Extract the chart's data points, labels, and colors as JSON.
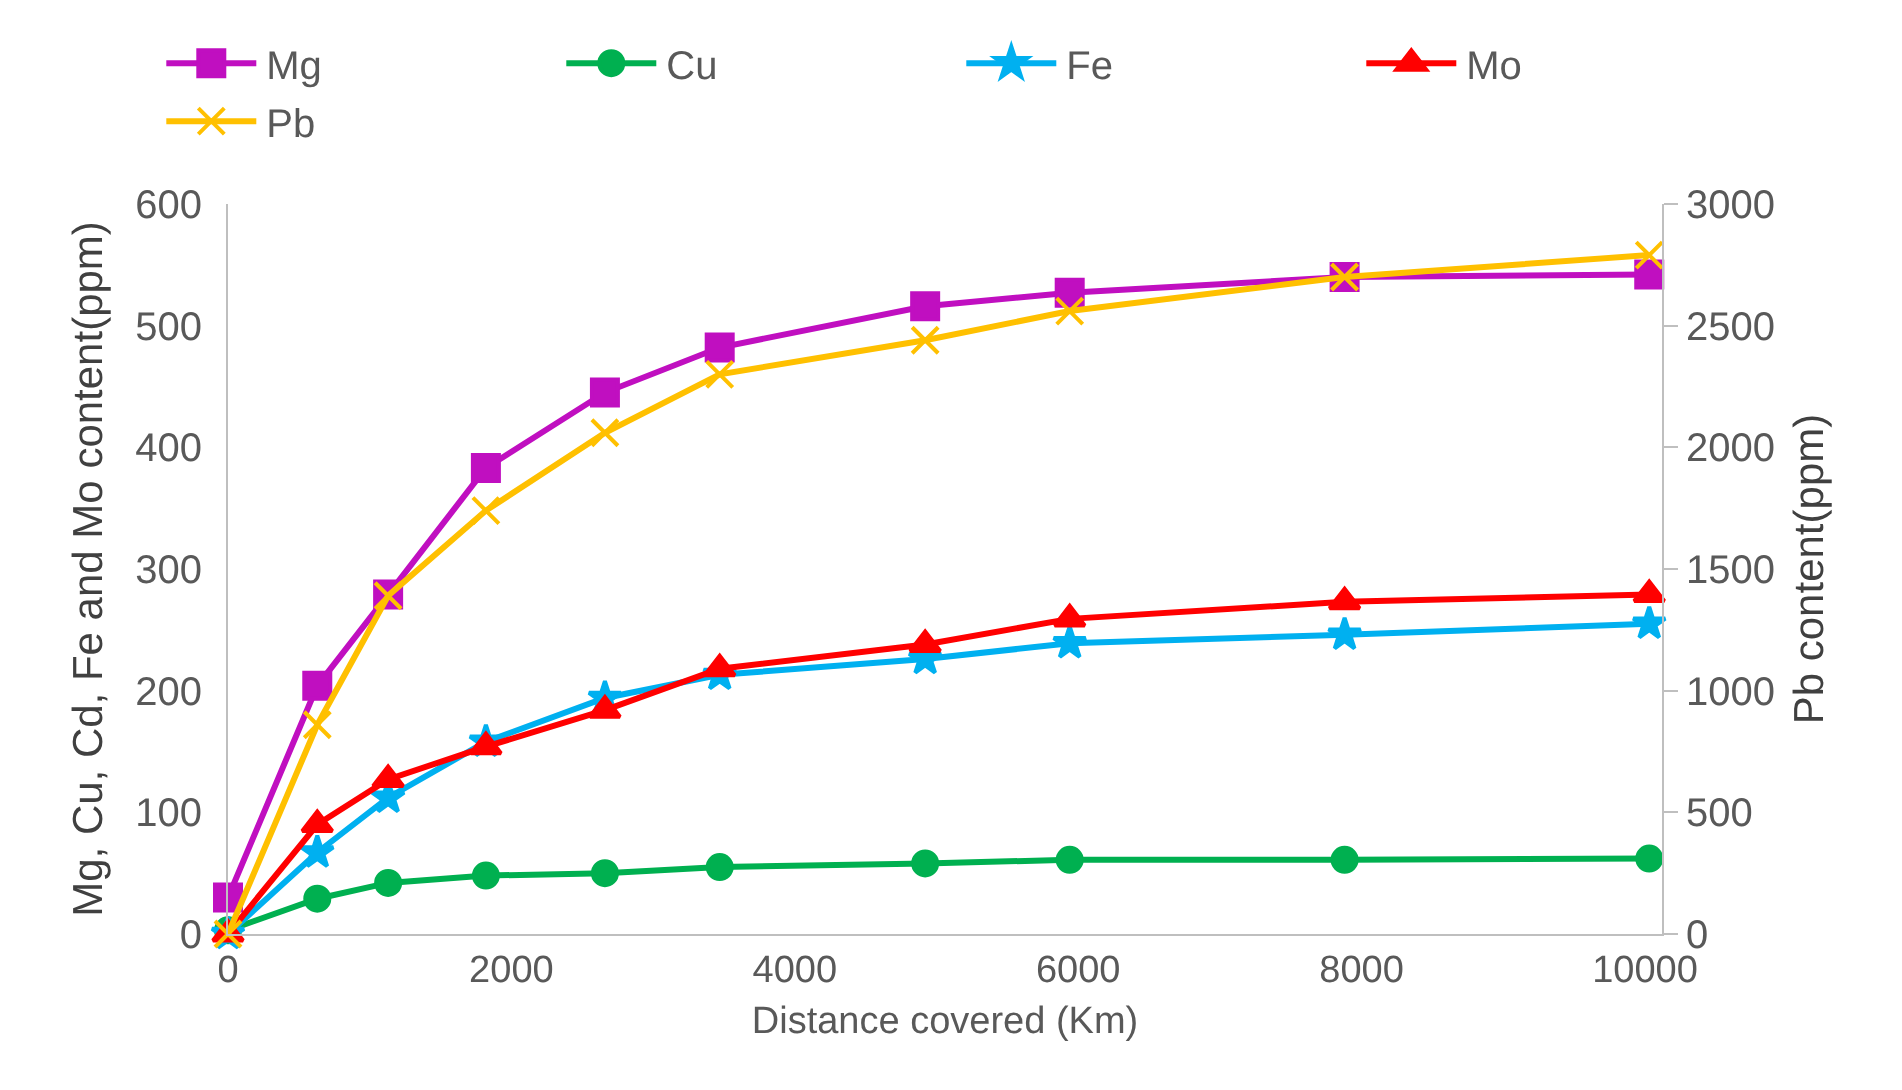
{
  "chart_data": {
    "type": "line",
    "xlabel": "Distance covered (Km)",
    "ylabel": "Mg, Cu, Cd, Fe and Mo content(ppm)",
    "y2label": "Pb content(ppm)",
    "x": [
      0,
      630,
      1130,
      1820,
      2660,
      3470,
      4920,
      5940,
      7880,
      10030
    ],
    "xlim": [
      0,
      10120
    ],
    "xticks": [
      0,
      2000,
      4000,
      6000,
      8000,
      10000
    ],
    "ylim": [
      0,
      600
    ],
    "yticks": [
      0,
      100,
      200,
      300,
      400,
      500,
      600
    ],
    "y2lim": [
      0,
      3000
    ],
    "y2ticks": [
      0,
      500,
      1000,
      1500,
      2000,
      2500,
      3000
    ],
    "grid": false,
    "legend": "top",
    "series": [
      {
        "name": "Mg",
        "color": "#c00fc0",
        "marker": "square",
        "values": [
          30,
          204,
          279,
          383,
          445,
          482,
          516,
          527,
          540,
          542
        ]
      },
      {
        "name": "Cu",
        "color": "#00b050",
        "marker": "circle",
        "values": [
          3,
          29,
          42,
          48,
          50,
          55,
          58,
          61,
          61,
          62
        ]
      },
      {
        "name": "Fe",
        "color": "#00b0f0",
        "marker": "star",
        "values": [
          0,
          67,
          112,
          158,
          194,
          213,
          226,
          239,
          246,
          255
        ]
      },
      {
        "name": "Mo",
        "color": "#ff0000",
        "marker": "triangle",
        "values": [
          0,
          90,
          127,
          154,
          184,
          218,
          238,
          259,
          273,
          279
        ]
      },
      {
        "name": "Pb",
        "color": "#ffc000",
        "marker": "cross",
        "axis": "y2",
        "values": [
          0,
          860,
          1390,
          1740,
          2060,
          2300,
          2440,
          2560,
          2700,
          2790
        ]
      }
    ]
  }
}
